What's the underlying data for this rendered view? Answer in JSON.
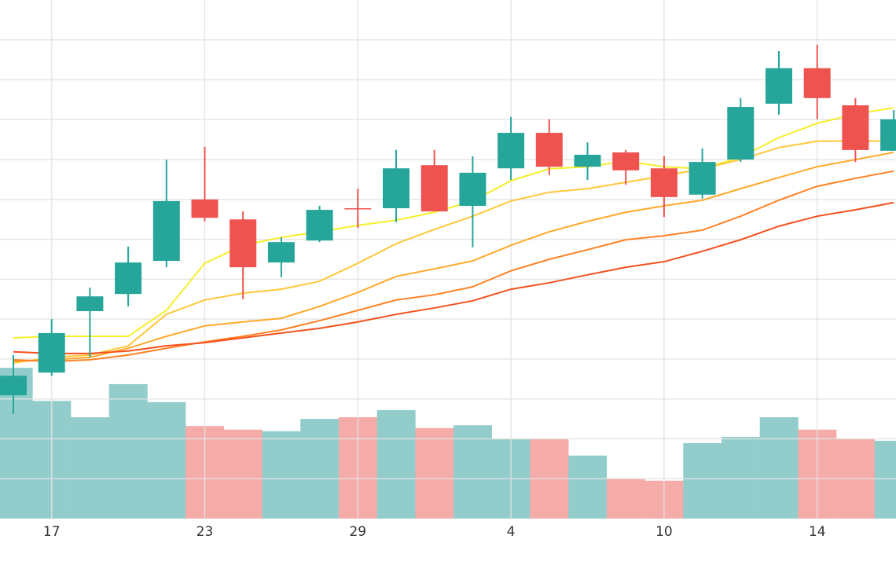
{
  "chart_data": {
    "type": "candlestick",
    "categories": [
      null,
      "17",
      null,
      null,
      null,
      "23",
      null,
      null,
      null,
      "29",
      null,
      null,
      null,
      "4",
      null,
      null,
      null,
      "10",
      null,
      null,
      null,
      "14",
      null,
      null
    ],
    "open": [
      3.09,
      3.66,
      5.2,
      5.63,
      6.46,
      8.0,
      7.5,
      6.42,
      6.97,
      7.78,
      7.78,
      8.86,
      7.84,
      8.78,
      9.67,
      8.82,
      9.18,
      8.78,
      8.12,
      9.0,
      10.4,
      11.29,
      10.36,
      9.22
    ],
    "high": [
      4.1,
      5.0,
      5.79,
      6.82,
      9.0,
      9.32,
      7.7,
      7.05,
      7.84,
      8.27,
      9.24,
      9.24,
      9.08,
      10.07,
      10.01,
      9.43,
      9.24,
      9.08,
      9.28,
      10.54,
      11.72,
      11.88,
      10.54,
      10.24
    ],
    "low": [
      2.62,
      3.58,
      4.04,
      5.32,
      6.3,
      7.45,
      5.5,
      6.05,
      6.93,
      7.29,
      7.43,
      7.7,
      6.8,
      8.49,
      8.61,
      8.49,
      8.37,
      7.56,
      8.02,
      8.94,
      10.12,
      10.01,
      8.94,
      9.22
    ],
    "close": [
      3.58,
      4.65,
      5.57,
      6.42,
      7.96,
      7.54,
      6.3,
      6.93,
      7.74,
      7.76,
      8.78,
      7.7,
      8.67,
      9.67,
      8.82,
      9.12,
      8.73,
      8.06,
      8.94,
      10.32,
      11.29,
      10.54,
      9.24,
      10.01
    ],
    "volume": [
      3.78,
      2.95,
      2.54,
      3.37,
      2.92,
      2.32,
      2.23,
      2.19,
      2.5,
      2.54,
      2.72,
      2.27,
      2.34,
      1.99,
      1.99,
      1.58,
      1.0,
      0.95,
      1.89,
      2.05,
      2.54,
      2.23,
      1.99,
      1.95
    ],
    "up_color": "#26a69a",
    "down_color": "#ef5350",
    "volume_up_color": "#92cdcc",
    "volume_down_color": "#f5aba8",
    "moving_averages": [
      {
        "color": "#f5ef2a",
        "values": [
          4.53,
          4.57,
          4.57,
          4.57,
          5.22,
          6.4,
          6.85,
          7.05,
          7.19,
          7.35,
          7.48,
          7.68,
          7.96,
          8.47,
          8.77,
          8.82,
          8.96,
          8.82,
          8.77,
          9.06,
          9.55,
          9.91,
          10.14,
          10.3
        ]
      },
      {
        "color": "#ffc83a",
        "values": [
          3.9,
          4.04,
          4.1,
          4.33,
          5.12,
          5.48,
          5.65,
          5.75,
          5.95,
          6.4,
          6.89,
          7.25,
          7.58,
          7.96,
          8.18,
          8.27,
          8.43,
          8.59,
          8.77,
          9.0,
          9.3,
          9.46,
          9.47,
          9.46
        ]
      },
      {
        "color": "#ffa928",
        "values": [
          3.94,
          3.98,
          4.04,
          4.27,
          4.57,
          4.83,
          4.93,
          5.02,
          5.32,
          5.67,
          6.07,
          6.26,
          6.46,
          6.85,
          7.19,
          7.45,
          7.68,
          7.84,
          7.98,
          8.27,
          8.55,
          8.82,
          9.0,
          9.18
        ]
      },
      {
        "color": "#ff8224",
        "values": [
          3.98,
          3.94,
          3.98,
          4.1,
          4.27,
          4.43,
          4.57,
          4.73,
          4.96,
          5.22,
          5.48,
          5.61,
          5.81,
          6.21,
          6.5,
          6.74,
          6.99,
          7.09,
          7.23,
          7.58,
          7.98,
          8.33,
          8.53,
          8.71
        ]
      },
      {
        "color": "#f4511e",
        "values": [
          4.18,
          4.14,
          4.14,
          4.2,
          4.33,
          4.41,
          4.53,
          4.65,
          4.77,
          4.93,
          5.12,
          5.28,
          5.46,
          5.75,
          5.91,
          6.11,
          6.3,
          6.44,
          6.7,
          6.99,
          7.33,
          7.58,
          7.74,
          7.92
        ]
      }
    ],
    "ylim": [
      0,
      13
    ],
    "yticks": [
      1,
      2,
      3,
      4,
      5,
      6,
      7,
      8,
      9,
      10,
      11,
      12
    ],
    "grid": true
  }
}
